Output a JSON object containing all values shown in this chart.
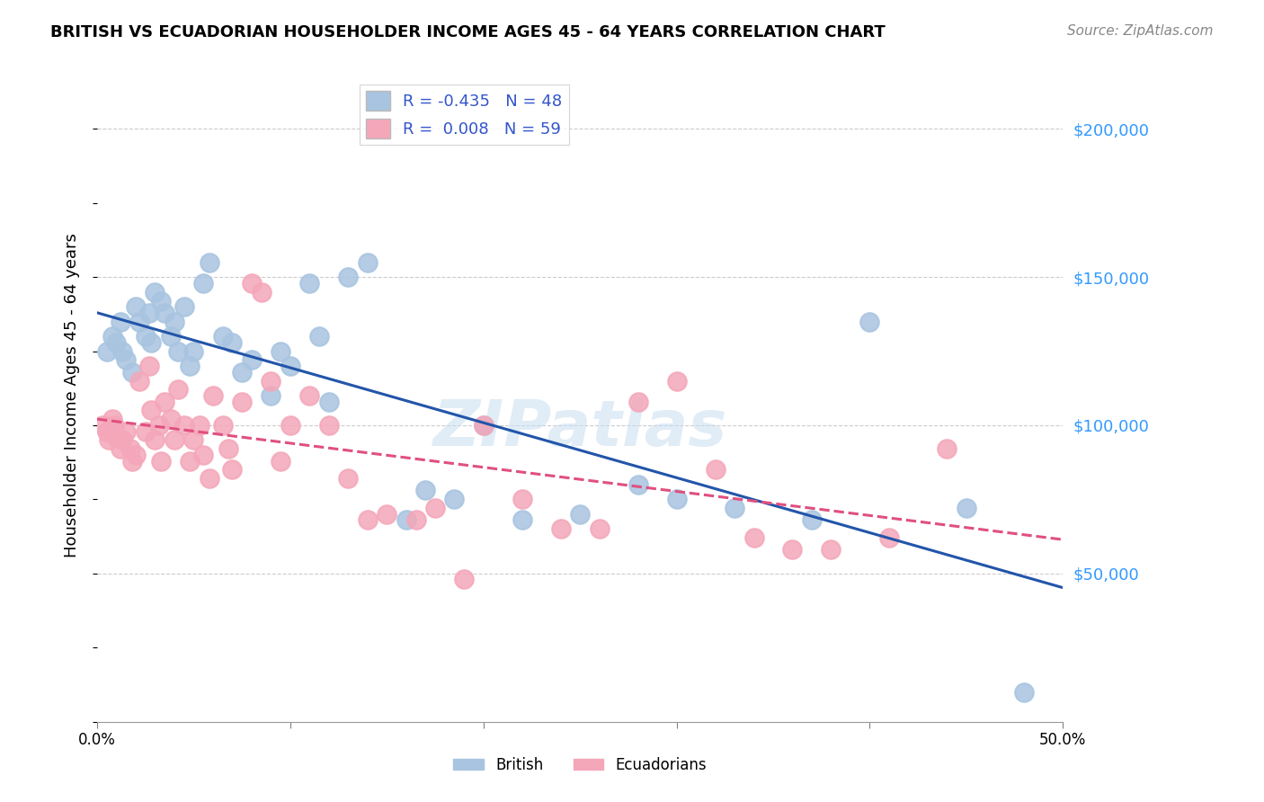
{
  "title": "BRITISH VS ECUADORIAN HOUSEHOLDER INCOME AGES 45 - 64 YEARS CORRELATION CHART",
  "source": "Source: ZipAtlas.com",
  "ylabel": "Householder Income Ages 45 - 64 years",
  "xlim": [
    0.0,
    0.5
  ],
  "ylim": [
    0,
    220000
  ],
  "yticks": [
    0,
    50000,
    100000,
    150000,
    200000
  ],
  "ytick_labels": [
    "",
    "$50,000",
    "$100,000",
    "$150,000",
    "$200,000"
  ],
  "xticks": [
    0.0,
    0.1,
    0.2,
    0.3,
    0.4,
    0.5
  ],
  "xtick_labels": [
    "0.0%",
    "",
    "",
    "",
    "",
    "50.0%"
  ],
  "british_R": -0.435,
  "british_N": 48,
  "ecuadorian_R": 0.008,
  "ecuadorian_N": 59,
  "british_color": "#a8c4e0",
  "ecuadorian_color": "#f4a7b9",
  "british_line_color": "#2255aa",
  "ecuadorian_line_color": "#e05080",
  "watermark": "ZIPatlas",
  "british_x": [
    0.005,
    0.008,
    0.01,
    0.012,
    0.013,
    0.015,
    0.018,
    0.02,
    0.022,
    0.025,
    0.027,
    0.028,
    0.03,
    0.033,
    0.035,
    0.038,
    0.04,
    0.042,
    0.045,
    0.048,
    0.05,
    0.055,
    0.058,
    0.065,
    0.07,
    0.075,
    0.08,
    0.09,
    0.095,
    0.1,
    0.11,
    0.115,
    0.12,
    0.13,
    0.14,
    0.16,
    0.17,
    0.185,
    0.2,
    0.22,
    0.25,
    0.28,
    0.3,
    0.33,
    0.37,
    0.4,
    0.45,
    0.48
  ],
  "british_y": [
    125000,
    130000,
    128000,
    135000,
    125000,
    122000,
    118000,
    140000,
    135000,
    130000,
    138000,
    128000,
    145000,
    142000,
    138000,
    130000,
    135000,
    125000,
    140000,
    120000,
    125000,
    148000,
    155000,
    130000,
    128000,
    118000,
    122000,
    110000,
    125000,
    120000,
    148000,
    130000,
    108000,
    150000,
    155000,
    68000,
    78000,
    75000,
    100000,
    68000,
    70000,
    80000,
    75000,
    72000,
    68000,
    135000,
    72000,
    10000
  ],
  "ecuadorian_x": [
    0.003,
    0.005,
    0.006,
    0.008,
    0.009,
    0.01,
    0.012,
    0.013,
    0.015,
    0.017,
    0.018,
    0.02,
    0.022,
    0.025,
    0.027,
    0.028,
    0.03,
    0.032,
    0.033,
    0.035,
    0.038,
    0.04,
    0.042,
    0.045,
    0.048,
    0.05,
    0.053,
    0.055,
    0.058,
    0.06,
    0.065,
    0.068,
    0.07,
    0.075,
    0.08,
    0.085,
    0.09,
    0.095,
    0.1,
    0.11,
    0.12,
    0.13,
    0.14,
    0.15,
    0.165,
    0.175,
    0.19,
    0.2,
    0.22,
    0.24,
    0.26,
    0.28,
    0.3,
    0.32,
    0.34,
    0.36,
    0.38,
    0.41,
    0.44
  ],
  "ecuadorian_y": [
    100000,
    98000,
    95000,
    102000,
    100000,
    96000,
    92000,
    95000,
    98000,
    92000,
    88000,
    90000,
    115000,
    98000,
    120000,
    105000,
    95000,
    100000,
    88000,
    108000,
    102000,
    95000,
    112000,
    100000,
    88000,
    95000,
    100000,
    90000,
    82000,
    110000,
    100000,
    92000,
    85000,
    108000,
    148000,
    145000,
    115000,
    88000,
    100000,
    110000,
    100000,
    82000,
    68000,
    70000,
    68000,
    72000,
    48000,
    100000,
    75000,
    65000,
    65000,
    108000,
    115000,
    85000,
    62000,
    58000,
    58000,
    62000,
    92000
  ]
}
